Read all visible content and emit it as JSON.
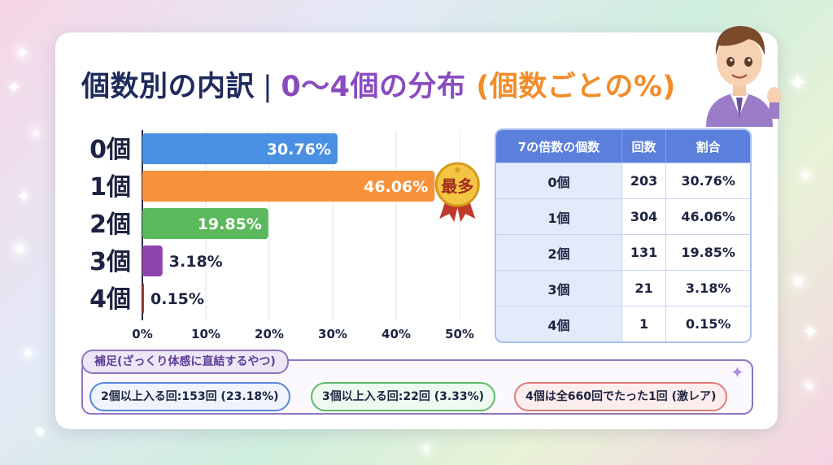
{
  "title": {
    "part1": "個数別の内訳",
    "separator": "|",
    "part2": "0〜4個の分布",
    "part3": "(個数ごとの%)"
  },
  "badge": {
    "text": "最多"
  },
  "chart_data": {
    "type": "bar",
    "orientation": "horizontal",
    "categories": [
      "0個",
      "1個",
      "2個",
      "3個",
      "4個"
    ],
    "values": [
      30.76,
      46.06,
      19.85,
      3.18,
      0.15
    ],
    "value_labels": [
      "30.76%",
      "46.06%",
      "19.85%",
      "3.18%",
      "0.15%"
    ],
    "colors": [
      "#4a90e2",
      "#f7923a",
      "#5cb85c",
      "#8e44ad",
      "#b03a2e"
    ],
    "xlim": [
      0,
      50
    ],
    "xticks": [
      "0%",
      "10%",
      "20%",
      "30%",
      "40%",
      "50%"
    ],
    "xlabel": "",
    "ylabel": "",
    "grid": true,
    "highlight": "1個"
  },
  "table": {
    "headers": [
      "7の倍数の個数",
      "回数",
      "割合"
    ],
    "rows": [
      [
        "0個",
        "203",
        "30.76%"
      ],
      [
        "1個",
        "304",
        "46.06%"
      ],
      [
        "2個",
        "131",
        "19.85%"
      ],
      [
        "3個",
        "21",
        "3.18%"
      ],
      [
        "4個",
        "1",
        "0.15%"
      ]
    ]
  },
  "note": {
    "label": "補足(ざっくり体感に直結するやつ)",
    "items": [
      "2個以上入る回:153回 (23.18%)",
      "3個以上入る回:22回 (3.33%)",
      "4個は全660回でたった1回 (激レア)"
    ]
  }
}
